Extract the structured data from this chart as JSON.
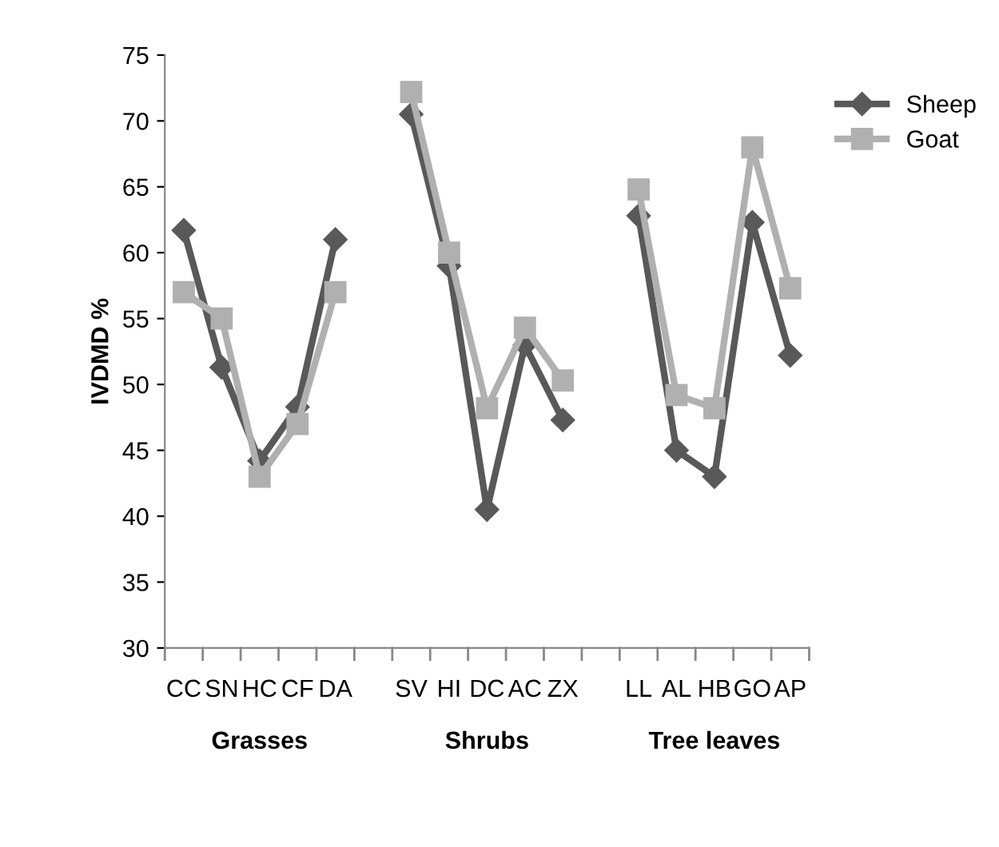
{
  "chart_data": {
    "type": "line",
    "ylabel": "IVDMD %",
    "categories": [
      "CC",
      "SN",
      "HC",
      "CF",
      "DA",
      null,
      "SV",
      "HI",
      "DC",
      "AC",
      "ZX",
      null,
      "LL",
      "AL",
      "HB",
      "GO",
      "AP"
    ],
    "series": [
      {
        "name": "Sheep",
        "color": "#595959",
        "marker": "diamond",
        "values": [
          61.7,
          51.3,
          44.2,
          48.3,
          61,
          null,
          70.5,
          59,
          40.5,
          53,
          47.3,
          null,
          62.8,
          45,
          43,
          62.3,
          52.2
        ]
      },
      {
        "name": "Goat",
        "color": "#b0b0b0",
        "marker": "square",
        "values": [
          57,
          55,
          43,
          47,
          57,
          null,
          72.2,
          60,
          48.2,
          54.3,
          50.3,
          null,
          64.8,
          49.2,
          48.2,
          68,
          57.3
        ]
      }
    ],
    "ylim": [
      30,
      75
    ],
    "yticks": [
      30,
      35,
      40,
      45,
      50,
      55,
      60,
      65,
      70,
      75
    ],
    "grid": false,
    "legend": "right",
    "annotations": [
      "Grasses",
      "Shrubs",
      "Tree leaves"
    ]
  }
}
